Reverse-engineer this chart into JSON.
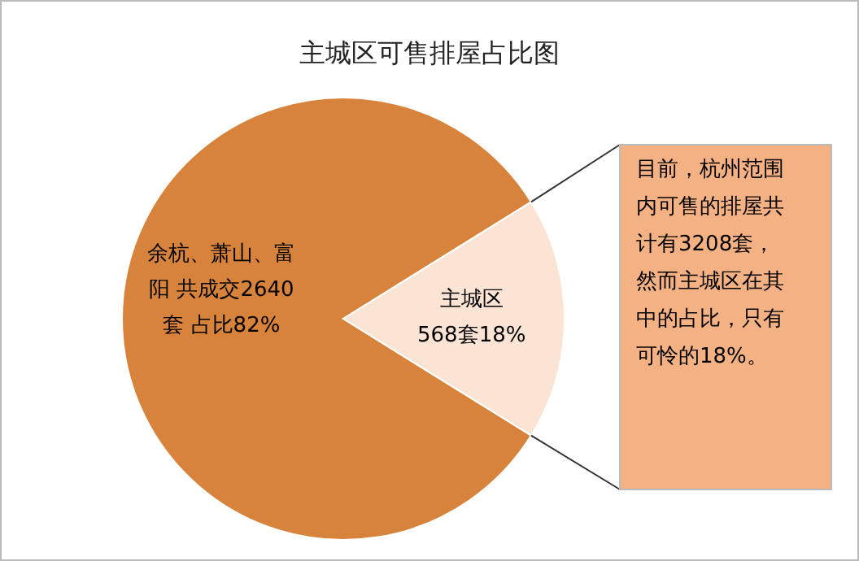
{
  "chart_data": {
    "type": "pie",
    "title": "主城区可售排屋占比图",
    "categories": [
      "余杭、萧山、富阳",
      "主城区"
    ],
    "values": [
      2640,
      568
    ],
    "value_labels": [
      "共成交2640套 占比82%",
      "568套18%"
    ],
    "colors": [
      "#d8833c",
      "#fce4d5"
    ],
    "annotations": [
      "目前，杭州范围内可售的排屋共计有3208套，然而主城区在其中的占比，只有可怜的18%。"
    ]
  }
}
